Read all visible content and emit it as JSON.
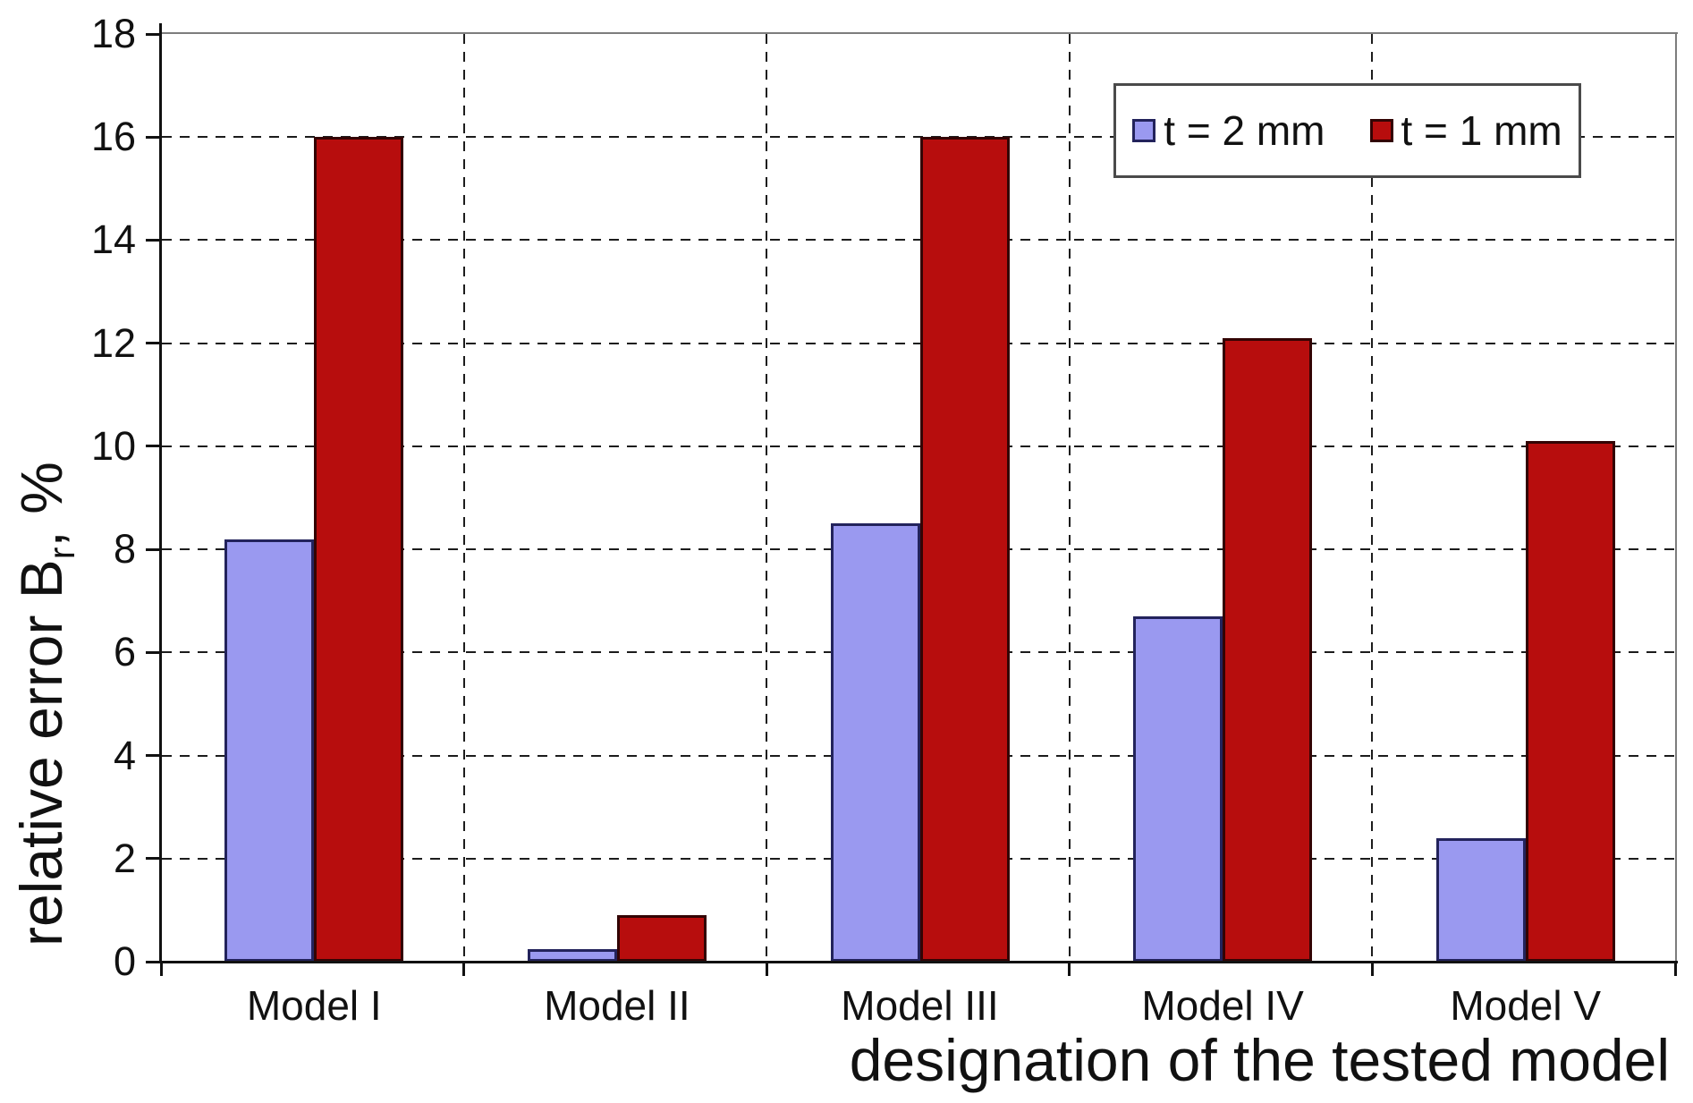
{
  "chart_data": {
    "type": "bar",
    "title": "",
    "categories": [
      "Model I",
      "Model II",
      "Model III",
      "Model IV",
      "Model V"
    ],
    "series": [
      {
        "name": "t = 2 mm",
        "values": [
          8.2,
          0.25,
          8.5,
          6.7,
          2.4
        ],
        "fill": "#9a99f0",
        "border": "#23235c"
      },
      {
        "name": "t = 1 mm",
        "values": [
          16.0,
          0.9,
          16.0,
          12.1,
          10.1
        ],
        "fill": "#b70d0d",
        "border": "#330404"
      }
    ],
    "xlabel": "designation of the tested model",
    "ylabel": "relative error Br, %",
    "ylabel_parts": {
      "prefix": "relative error B",
      "sub": "r",
      "suffix": ", %"
    },
    "ylim": [
      0,
      18
    ],
    "ytick_step": 2,
    "yticks": [
      "0",
      "2",
      "4",
      "6",
      "8",
      "10",
      "12",
      "14",
      "16",
      "18"
    ],
    "grid": {
      "style": "dashed",
      "color": "#1c1c1c"
    },
    "frame_color": "#7d7d7d",
    "axis_color": "#111111",
    "background": "#ffffff",
    "legend_position": "top-right"
  }
}
